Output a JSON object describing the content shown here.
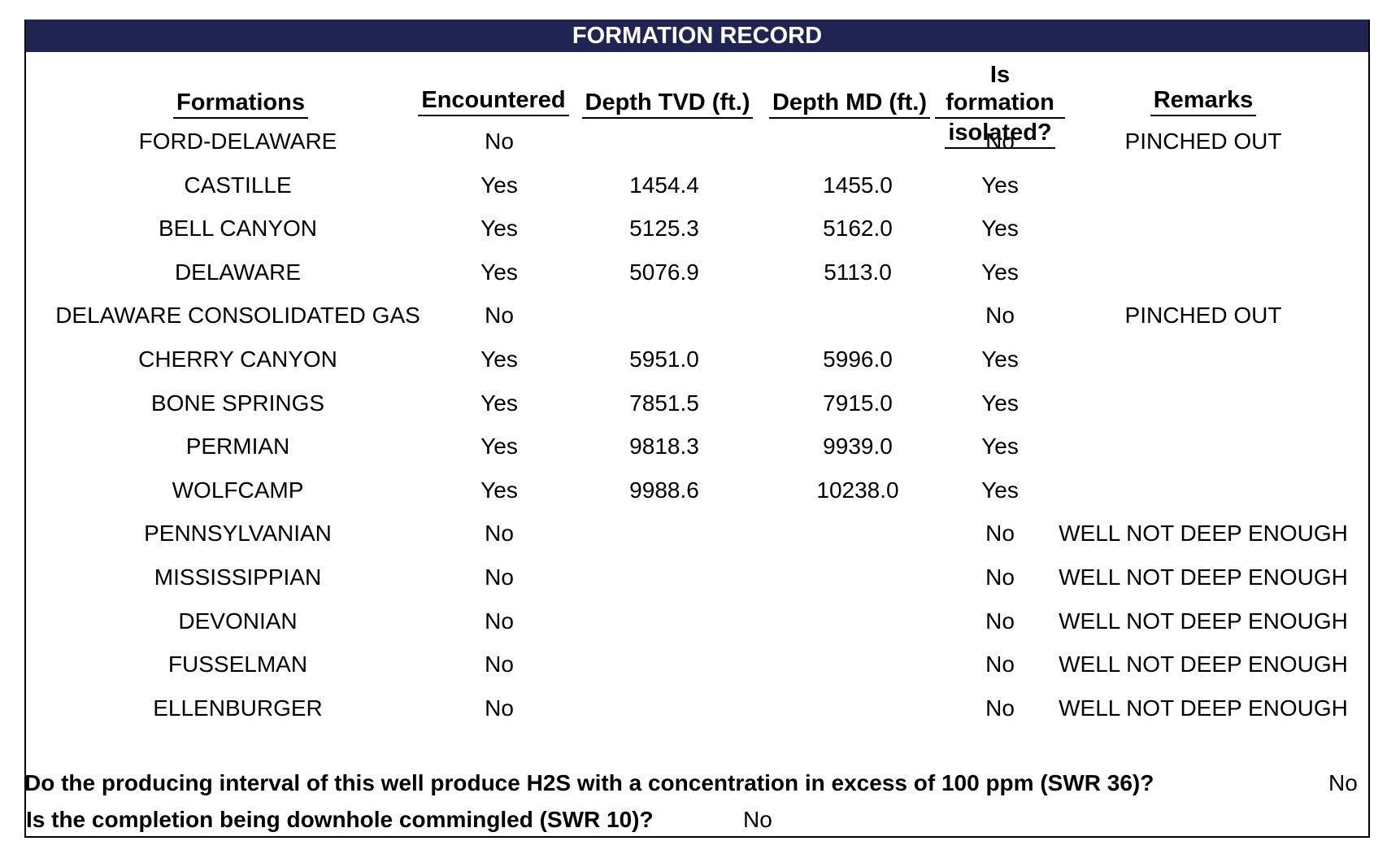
{
  "title": "FORMATION RECORD",
  "headers": {
    "formations": "Formations",
    "encountered": "Encountered",
    "tvd": "Depth TVD (ft.)",
    "md": "Depth MD (ft.)",
    "isolated_line1": "Is formation",
    "isolated_line2": "isolated?",
    "remarks": "Remarks"
  },
  "rows": [
    {
      "formation": "FORD-DELAWARE",
      "encountered": "No",
      "tvd": "",
      "md": "",
      "isolated": "No",
      "remarks": "PINCHED OUT"
    },
    {
      "formation": "CASTILLE",
      "encountered": "Yes",
      "tvd": "1454.4",
      "md": "1455.0",
      "isolated": "Yes",
      "remarks": ""
    },
    {
      "formation": "BELL CANYON",
      "encountered": "Yes",
      "tvd": "5125.3",
      "md": "5162.0",
      "isolated": "Yes",
      "remarks": ""
    },
    {
      "formation": "DELAWARE",
      "encountered": "Yes",
      "tvd": "5076.9",
      "md": "5113.0",
      "isolated": "Yes",
      "remarks": ""
    },
    {
      "formation": "DELAWARE CONSOLIDATED GAS",
      "encountered": "No",
      "tvd": "",
      "md": "",
      "isolated": "No",
      "remarks": "PINCHED OUT"
    },
    {
      "formation": "CHERRY CANYON",
      "encountered": "Yes",
      "tvd": "5951.0",
      "md": "5996.0",
      "isolated": "Yes",
      "remarks": ""
    },
    {
      "formation": "BONE SPRINGS",
      "encountered": "Yes",
      "tvd": "7851.5",
      "md": "7915.0",
      "isolated": "Yes",
      "remarks": ""
    },
    {
      "formation": "PERMIAN",
      "encountered": "Yes",
      "tvd": "9818.3",
      "md": "9939.0",
      "isolated": "Yes",
      "remarks": ""
    },
    {
      "formation": "WOLFCAMP",
      "encountered": "Yes",
      "tvd": "9988.6",
      "md": "10238.0",
      "isolated": "Yes",
      "remarks": ""
    },
    {
      "formation": "PENNSYLVANIAN",
      "encountered": "No",
      "tvd": "",
      "md": "",
      "isolated": "No",
      "remarks": "WELL NOT DEEP ENOUGH"
    },
    {
      "formation": "MISSISSIPPIAN",
      "encountered": "No",
      "tvd": "",
      "md": "",
      "isolated": "No",
      "remarks": "WELL NOT DEEP ENOUGH"
    },
    {
      "formation": "DEVONIAN",
      "encountered": "No",
      "tvd": "",
      "md": "",
      "isolated": "No",
      "remarks": "WELL NOT DEEP ENOUGH"
    },
    {
      "formation": "FUSSELMAN",
      "encountered": "No",
      "tvd": "",
      "md": "",
      "isolated": "No",
      "remarks": "WELL NOT DEEP ENOUGH"
    },
    {
      "formation": "ELLENBURGER",
      "encountered": "No",
      "tvd": "",
      "md": "",
      "isolated": "No",
      "remarks": "WELL NOT DEEP ENOUGH"
    }
  ],
  "questions": {
    "h2s": "Do the producing interval of this well produce H2S with a concentration in excess of 100 ppm (SWR 36)?",
    "h2s_answer": "No",
    "commingled": "Is the completion being downhole commingled (SWR 10)?",
    "commingled_answer": "No"
  },
  "colors": {
    "title_bar": "#1f2452",
    "title_text": "#ffffff"
  }
}
